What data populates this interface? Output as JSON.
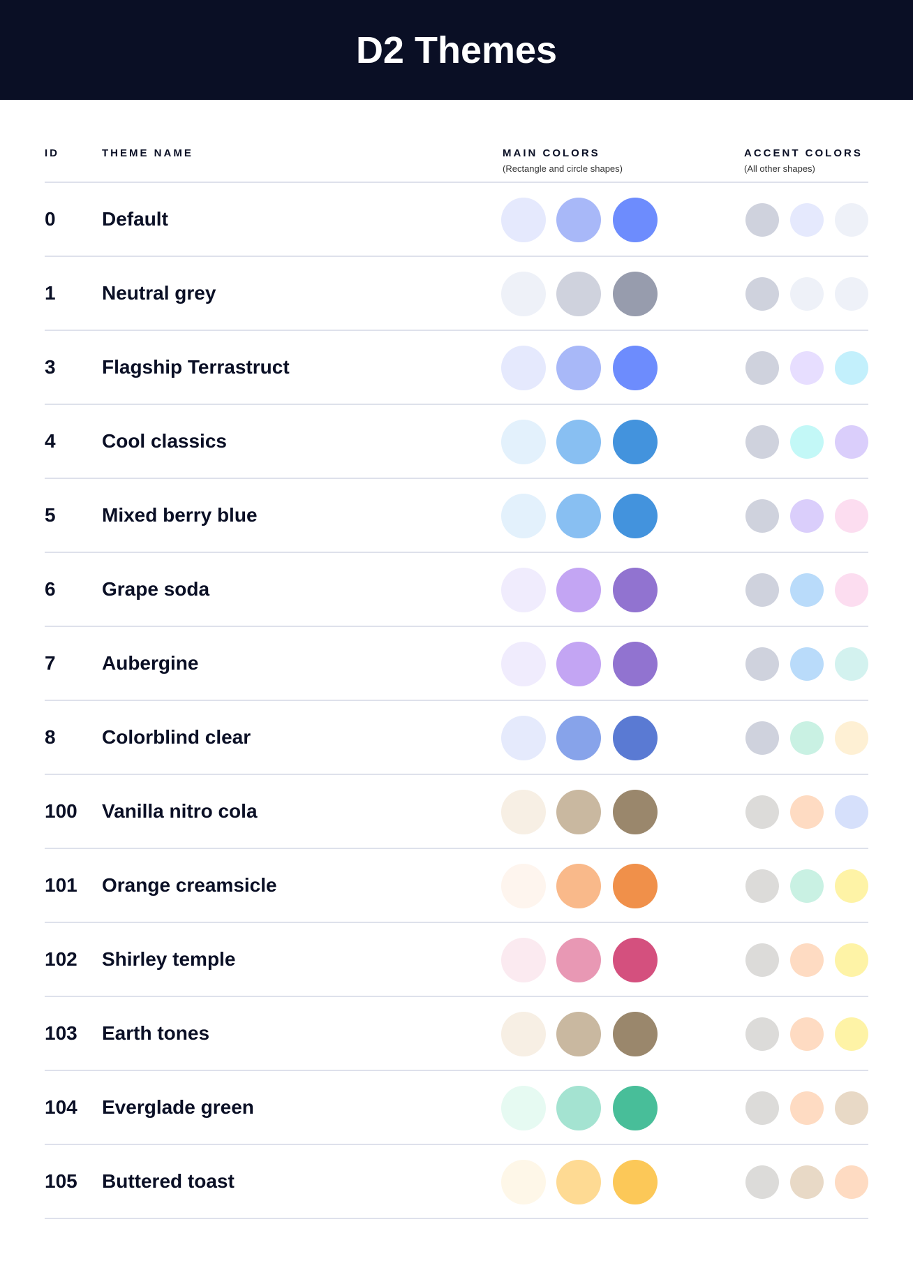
{
  "title": "D2 Themes",
  "headers": {
    "id": "ID",
    "name": "THEME NAME",
    "main": "MAIN COLORS",
    "main_sub": "(Rectangle and circle shapes)",
    "accent": "ACCENT COLORS",
    "accent_sub": "(All other shapes)"
  },
  "themes": [
    {
      "id": "0",
      "name": "Default",
      "main": [
        "#E5E9FD",
        "#A8B8F8",
        "#6D8CFD"
      ],
      "accent": [
        "#CFD2DD",
        "#E5E9FD",
        "#EEF1F8"
      ]
    },
    {
      "id": "1",
      "name": "Neutral grey",
      "main": [
        "#EEF1F8",
        "#CFD2DD",
        "#979CAD"
      ],
      "accent": [
        "#CFD2DD",
        "#EEF1F8",
        "#EEF1F8"
      ]
    },
    {
      "id": "3",
      "name": "Flagship Terrastruct",
      "main": [
        "#E5E9FD",
        "#A8B8F8",
        "#6D8CFD"
      ],
      "accent": [
        "#CFD2DD",
        "#E7DEFF",
        "#C3F0FC"
      ]
    },
    {
      "id": "4",
      "name": "Cool classics",
      "main": [
        "#E3F1FC",
        "#88BFF2",
        "#4393DD"
      ],
      "accent": [
        "#CFD2DD",
        "#C3F8F7",
        "#DACEFB"
      ]
    },
    {
      "id": "5",
      "name": "Mixed berry blue",
      "main": [
        "#E3F1FC",
        "#88BFF2",
        "#4393DD"
      ],
      "accent": [
        "#CFD2DD",
        "#DACEFB",
        "#FCDDF0"
      ]
    },
    {
      "id": "6",
      "name": "Grape soda",
      "main": [
        "#F0ECFD",
        "#C3A5F3",
        "#9173D0"
      ],
      "accent": [
        "#CFD2DD",
        "#B9DBFA",
        "#FCDDF0"
      ]
    },
    {
      "id": "7",
      "name": "Aubergine",
      "main": [
        "#F0ECFD",
        "#C3A5F3",
        "#9173D0"
      ],
      "accent": [
        "#CFD2DD",
        "#B9DBFA",
        "#D3F2EF"
      ]
    },
    {
      "id": "8",
      "name": "Colorblind clear",
      "main": [
        "#E5EAFC",
        "#87A3EA",
        "#5A7AD3"
      ],
      "accent": [
        "#CFD2DD",
        "#C9F1E3",
        "#FEF0D4"
      ]
    },
    {
      "id": "100",
      "name": "Vanilla nitro cola",
      "main": [
        "#F7EFE4",
        "#C9B8A0",
        "#9A876C"
      ],
      "accent": [
        "#DCDBD9",
        "#FEDBC2",
        "#D6E0FB"
      ]
    },
    {
      "id": "101",
      "name": "Orange creamsicle",
      "main": [
        "#FEF5EE",
        "#F9B98A",
        "#F0904A"
      ],
      "accent": [
        "#DCDBD9",
        "#C9F1E3",
        "#FEF3A6"
      ]
    },
    {
      "id": "102",
      "name": "Shirley temple",
      "main": [
        "#FBEAF0",
        "#E898B4",
        "#D4507E"
      ],
      "accent": [
        "#DCDBD9",
        "#FEDBC2",
        "#FEF3A6"
      ]
    },
    {
      "id": "103",
      "name": "Earth tones",
      "main": [
        "#F7EFE4",
        "#C9B8A0",
        "#9A876C"
      ],
      "accent": [
        "#DCDBD9",
        "#FEDBC2",
        "#FEF3A6"
      ]
    },
    {
      "id": "104",
      "name": "Everglade green",
      "main": [
        "#E6FAF2",
        "#A4E3D1",
        "#48BE99"
      ],
      "accent": [
        "#DCDBD9",
        "#FEDBC2",
        "#E8D9C6"
      ]
    },
    {
      "id": "105",
      "name": "Buttered toast",
      "main": [
        "#FEF7E8",
        "#FEDA93",
        "#FCC858"
      ],
      "accent": [
        "#DCDBD9",
        "#E8D9C6",
        "#FEDBC2"
      ]
    }
  ]
}
